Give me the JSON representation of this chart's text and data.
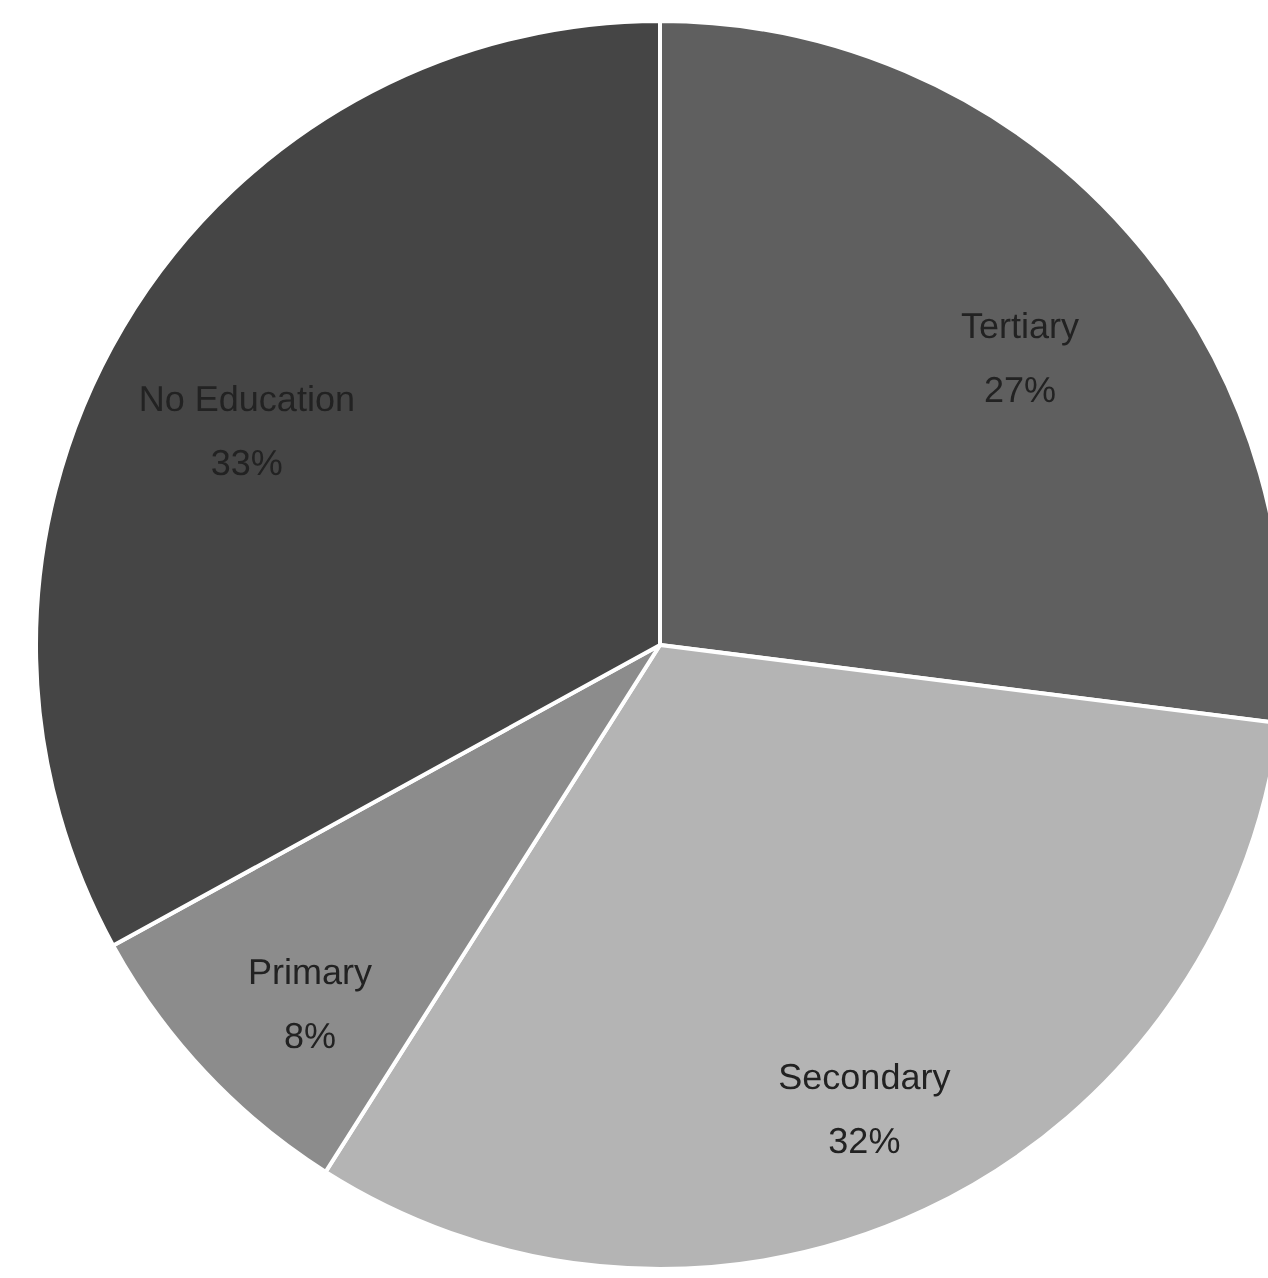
{
  "chart_data": {
    "type": "pie",
    "categories": [
      "Tertiary",
      "Secondary",
      "Primary",
      "No Education"
    ],
    "values": [
      27,
      32,
      8,
      33
    ],
    "value_labels": [
      "27%",
      "32%",
      "8%",
      "33%"
    ],
    "colors": [
      "#5f5f5f",
      "#b4b4b4",
      "#8c8c8c",
      "#454545"
    ]
  }
}
